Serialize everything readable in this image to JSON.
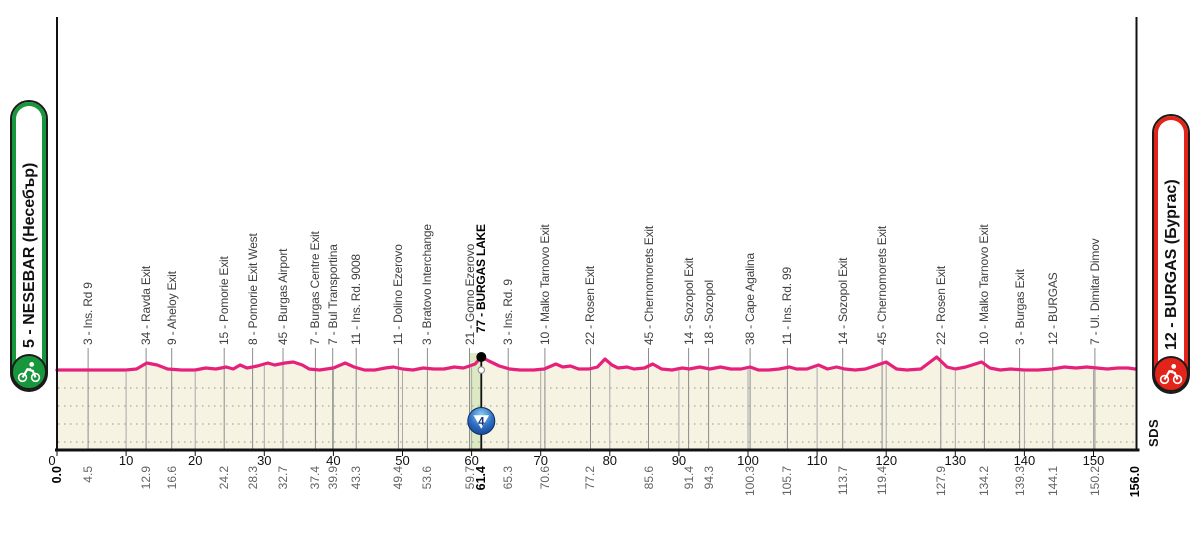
{
  "route": {
    "start": {
      "label": "5 - NESEBAR (Несебър)",
      "color": "#18963c"
    },
    "finish": {
      "label": "12 - BURGAS (Бургас)",
      "color": "#e2241a"
    }
  },
  "sprint": {
    "value": "4",
    "km": 61.4,
    "zone_start_km": 59.7,
    "zone_end_km": 61.4,
    "badge_color": "#1d4f9e",
    "band_color": "#dde9c5"
  },
  "watermark": "SDS",
  "chart_data": {
    "type": "line",
    "title": "Stage profile: 5 - NESEBAR (Несебър) to 12 - BURGAS (Бургас)",
    "xlabel": "km",
    "ylabel": "",
    "x_range": [
      0,
      156
    ],
    "x_ticks": [
      0,
      10,
      20,
      30,
      40,
      50,
      60,
      70,
      80,
      90,
      100,
      110,
      120,
      130,
      140,
      150
    ],
    "start_km_label": "0.0",
    "finish_km_label": "156.0",
    "line_color": "#e6217c",
    "area_fill": "#f6f3e3",
    "waypoints": [
      {
        "km": 4.5,
        "label": "3 - Ins. Rd 9"
      },
      {
        "km": 12.9,
        "label": "34 - Ravda Exit"
      },
      {
        "km": 16.6,
        "label": "9 - Aheloy Exit"
      },
      {
        "km": 24.2,
        "label": "15 - Pomorie Exit"
      },
      {
        "km": 28.3,
        "label": "8 - Pomorie Exit West"
      },
      {
        "km": 32.7,
        "label": "45 - Burgas Airport"
      },
      {
        "km": 37.4,
        "label": "7 - Burgas Centre Exit"
      },
      {
        "km": 39.9,
        "label": "7 - Bul Transportina"
      },
      {
        "km": 43.3,
        "label": "11 - Ins. Rd. 9008"
      },
      {
        "km": 49.4,
        "label": "11 - Dolino Ezerovo"
      },
      {
        "km": 53.6,
        "label": "3 - Bratovo Interchange"
      },
      {
        "km": 59.7,
        "label": "21 - Gorno Ezerovo"
      },
      {
        "km": 61.4,
        "label": "77 - BURGAS LAKE",
        "bold": true
      },
      {
        "km": 65.3,
        "label": "3 - Ins. Rd. 9"
      },
      {
        "km": 70.6,
        "label": "10 - Malko Tarnovo Exit"
      },
      {
        "km": 77.2,
        "label": "22 - Rosen Exit"
      },
      {
        "km": 85.6,
        "label": "45 - Chernomorets Exit"
      },
      {
        "km": 91.4,
        "label": "14 - Sozopol Exit"
      },
      {
        "km": 94.3,
        "label": "18 - Sozopol"
      },
      {
        "km": 100.3,
        "label": "38 - Cape Agalina"
      },
      {
        "km": 105.7,
        "label": "11 - Ins. Rd. 99"
      },
      {
        "km": 113.7,
        "label": "14 - Sozopol Exit"
      },
      {
        "km": 119.4,
        "label": "45 - Chernomorets Exit"
      },
      {
        "km": 127.9,
        "label": "22 - Rosen Exit"
      },
      {
        "km": 134.2,
        "label": "10 - Malko Tarnovo Exit"
      },
      {
        "km": 139.3,
        "label": "3 - Burgas Exit"
      },
      {
        "km": 144.1,
        "label": "12 - BURGAS"
      },
      {
        "km": 150.2,
        "label": "7 - Ul. Dimitar Dimov"
      }
    ],
    "profile_elevation_m_estimated": [
      [
        0,
        3
      ],
      [
        2,
        3
      ],
      [
        4,
        3
      ],
      [
        6,
        3
      ],
      [
        8,
        3
      ],
      [
        10,
        3
      ],
      [
        11.5,
        4
      ],
      [
        13,
        10
      ],
      [
        14.5,
        8
      ],
      [
        16,
        4
      ],
      [
        18,
        3
      ],
      [
        20,
        3
      ],
      [
        21.5,
        5
      ],
      [
        23,
        4
      ],
      [
        24.5,
        6
      ],
      [
        25.5,
        4
      ],
      [
        26.5,
        8
      ],
      [
        27.5,
        5
      ],
      [
        29,
        7
      ],
      [
        30.5,
        10
      ],
      [
        31.5,
        8
      ],
      [
        33,
        10
      ],
      [
        34.2,
        11
      ],
      [
        35.5,
        8
      ],
      [
        36.5,
        4
      ],
      [
        38,
        3
      ],
      [
        40,
        5
      ],
      [
        41.7,
        10
      ],
      [
        43,
        6
      ],
      [
        44.5,
        3
      ],
      [
        46,
        3
      ],
      [
        47.5,
        5
      ],
      [
        48.7,
        6
      ],
      [
        50,
        4
      ],
      [
        51.5,
        3
      ],
      [
        53,
        5
      ],
      [
        54.5,
        4
      ],
      [
        56,
        4
      ],
      [
        57.5,
        6
      ],
      [
        58.8,
        5
      ],
      [
        59.7,
        7
      ],
      [
        60.5,
        9
      ],
      [
        61.4,
        16
      ],
      [
        62.5,
        12
      ],
      [
        64,
        7
      ],
      [
        65.5,
        4
      ],
      [
        67,
        3
      ],
      [
        69,
        3
      ],
      [
        70.5,
        4
      ],
      [
        72.2,
        9
      ],
      [
        73.2,
        6
      ],
      [
        74.3,
        7
      ],
      [
        75.5,
        4
      ],
      [
        77,
        4
      ],
      [
        78.2,
        6
      ],
      [
        79.3,
        14
      ],
      [
        80.3,
        8
      ],
      [
        81.2,
        5
      ],
      [
        82.5,
        6
      ],
      [
        83.5,
        4
      ],
      [
        85,
        5
      ],
      [
        86.2,
        9
      ],
      [
        87.5,
        4
      ],
      [
        89,
        3
      ],
      [
        90.5,
        5
      ],
      [
        91.5,
        4
      ],
      [
        93,
        6
      ],
      [
        94.5,
        4
      ],
      [
        96,
        6
      ],
      [
        97.5,
        4
      ],
      [
        99,
        4
      ],
      [
        100.3,
        6
      ],
      [
        101.5,
        3
      ],
      [
        103,
        3
      ],
      [
        104.5,
        4
      ],
      [
        106,
        6
      ],
      [
        107,
        4
      ],
      [
        108.5,
        4
      ],
      [
        110.2,
        8
      ],
      [
        111.5,
        4
      ],
      [
        112.8,
        6
      ],
      [
        114,
        4
      ],
      [
        115.5,
        3
      ],
      [
        117,
        4
      ],
      [
        120,
        11
      ],
      [
        121.5,
        4
      ],
      [
        123,
        3
      ],
      [
        125,
        4
      ],
      [
        127.3,
        16
      ],
      [
        128.8,
        6
      ],
      [
        130,
        4
      ],
      [
        131.5,
        6
      ],
      [
        133.8,
        11
      ],
      [
        135,
        5
      ],
      [
        136.5,
        3
      ],
      [
        138,
        4
      ],
      [
        140,
        3
      ],
      [
        142,
        3
      ],
      [
        144,
        4
      ],
      [
        145.8,
        6
      ],
      [
        147.5,
        5
      ],
      [
        149,
        6
      ],
      [
        150.5,
        5
      ],
      [
        152,
        4
      ],
      [
        153.5,
        5
      ],
      [
        155,
        5
      ],
      [
        156,
        4
      ]
    ]
  }
}
